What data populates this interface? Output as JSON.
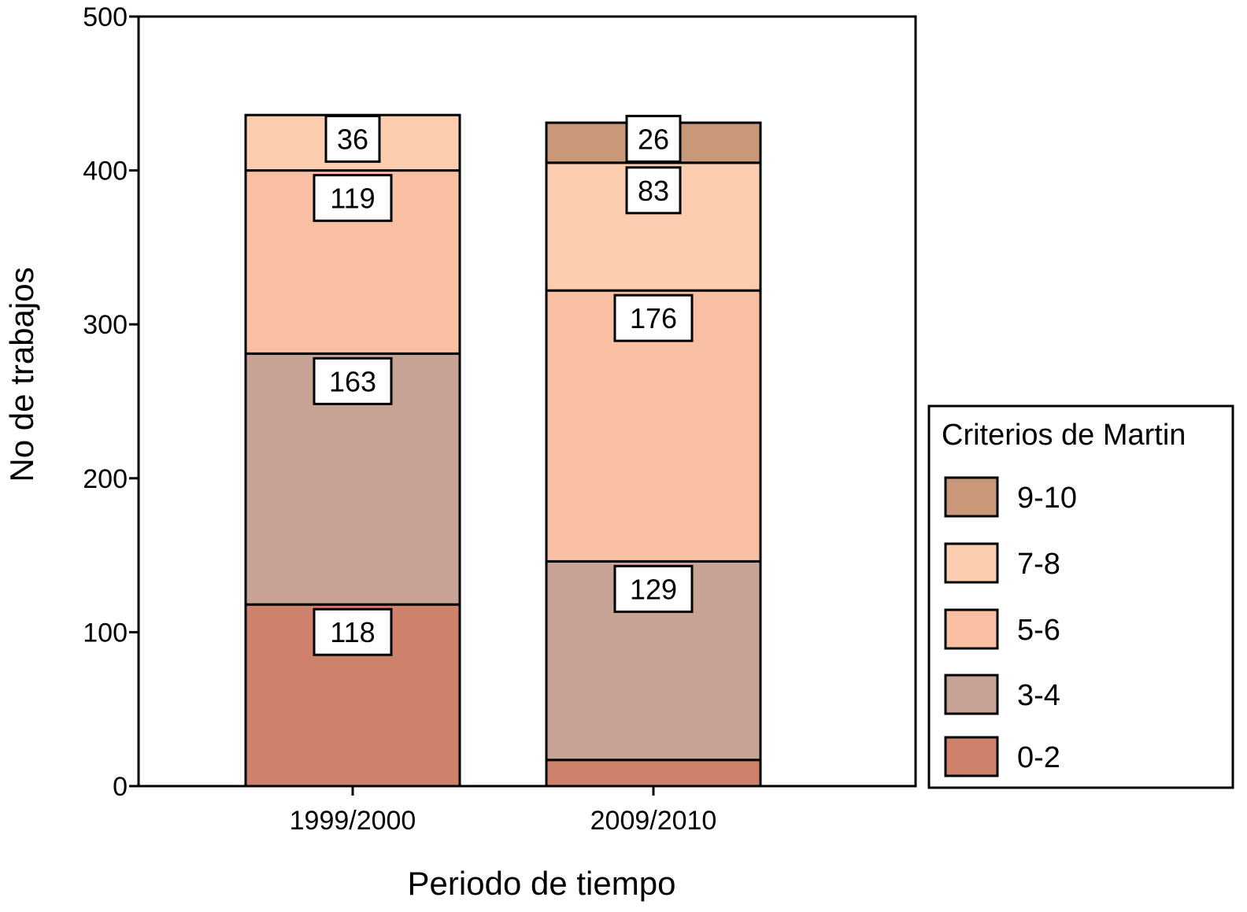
{
  "chart_data": {
    "type": "bar",
    "stacked": true,
    "categories": [
      "1999/2000",
      "2009/2010"
    ],
    "xlabel": "Periodo de tiempo",
    "ylabel": "No de trabajos",
    "ylim": [
      0,
      500
    ],
    "yticks": [
      "0",
      "100",
      "200",
      "300",
      "400",
      "500"
    ],
    "legend": {
      "title": "Criterios de Martin",
      "placement": "right"
    },
    "series": [
      {
        "name": "0-2",
        "color": "#cf826b",
        "values": [
          118,
          17
        ],
        "labels": [
          "118",
          ""
        ]
      },
      {
        "name": "3-4",
        "color": "#c7a396",
        "values": [
          163,
          129
        ],
        "labels": [
          "163",
          "129"
        ]
      },
      {
        "name": "5-6",
        "color": "#f9bfa2",
        "values": [
          119,
          176
        ],
        "labels": [
          "119",
          "176"
        ]
      },
      {
        "name": "7-8",
        "color": "#fccdaf",
        "values": [
          36,
          83
        ],
        "labels": [
          "36",
          "83"
        ]
      },
      {
        "name": "9-10",
        "color": "#c99878",
        "values": [
          0,
          26
        ],
        "labels": [
          "",
          "26"
        ]
      }
    ]
  }
}
